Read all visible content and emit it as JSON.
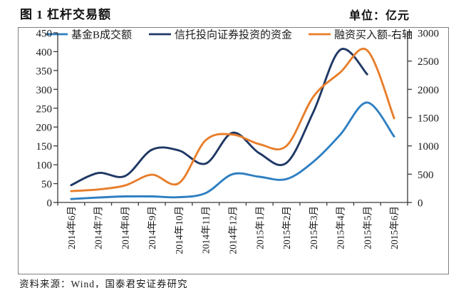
{
  "header": {
    "title": "图 1 杠杆交易额",
    "unit": "单位：亿元"
  },
  "footer": {
    "source": "资料来源：Wind，国泰君安证券研究"
  },
  "chart_data": {
    "type": "line",
    "smooth": true,
    "grid": false,
    "legend_position": "top-inside",
    "categories": [
      "2014年6月",
      "2014年7月",
      "2014年8月",
      "2014年9月",
      "2014年10月",
      "2014年11月",
      "2014年12月",
      "2015年1月",
      "2015年2月",
      "2015年3月",
      "2015年4月",
      "2015年5月",
      "2015年6月"
    ],
    "left_axis": {
      "min": 0,
      "max": 450,
      "step": 50,
      "ticks": [
        0,
        50,
        100,
        150,
        200,
        250,
        300,
        350,
        400,
        450
      ]
    },
    "right_axis": {
      "min": 0,
      "max": 3000,
      "step": 500,
      "ticks": [
        0,
        500,
        1000,
        1500,
        2000,
        2500,
        3000
      ]
    },
    "series": [
      {
        "name": "基金B成交额",
        "axis": "left",
        "color": "#2E7FC2",
        "values": [
          9,
          13,
          16,
          16,
          14,
          25,
          75,
          68,
          62,
          108,
          180,
          265,
          175
        ]
      },
      {
        "name": "信托投向证券投资的资金",
        "axis": "left",
        "color": "#1F3864",
        "values": [
          46,
          78,
          70,
          140,
          138,
          103,
          185,
          130,
          105,
          240,
          405,
          340
        ]
      },
      {
        "name": "融资买入额-右轴",
        "axis": "right",
        "color": "#E87E2B",
        "values": [
          200,
          230,
          300,
          490,
          340,
          1100,
          1200,
          1030,
          1000,
          1870,
          2300,
          2690,
          1490
        ]
      }
    ],
    "axis_color": "#3a3a3a",
    "label_color": "#1a1a1a"
  }
}
